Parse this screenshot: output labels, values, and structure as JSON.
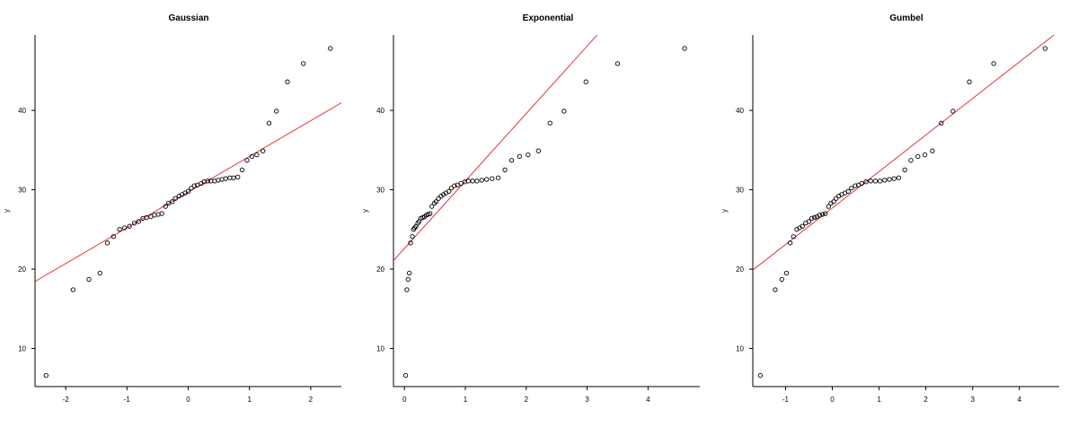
{
  "chart_data": [
    {
      "type": "scatter",
      "title": "Gaussian",
      "xlabel": "",
      "ylabel": "y",
      "xlim": [
        -2.5,
        2.5
      ],
      "ylim": [
        5.2,
        49.5
      ],
      "x_ticks": [
        -2,
        -1,
        0,
        1,
        2
      ],
      "y_ticks": [
        10,
        20,
        30,
        40
      ],
      "grid": false,
      "point_color": "#000000",
      "line_color": "#e02020",
      "reference_line": {
        "intercept": 29.7,
        "slope": 4.5
      },
      "points": [
        [
          -2.32,
          6.6
        ],
        [
          -1.88,
          17.4
        ],
        [
          -1.62,
          18.7
        ],
        [
          -1.44,
          19.5
        ],
        [
          -1.32,
          23.3
        ],
        [
          -1.22,
          24.1
        ],
        [
          -1.12,
          25.0
        ],
        [
          -1.04,
          25.2
        ],
        [
          -0.96,
          25.4
        ],
        [
          -0.88,
          25.8
        ],
        [
          -0.81,
          26.0
        ],
        [
          -0.74,
          26.4
        ],
        [
          -0.68,
          26.5
        ],
        [
          -0.61,
          26.6
        ],
        [
          -0.55,
          26.8
        ],
        [
          -0.49,
          26.9
        ],
        [
          -0.43,
          27.0
        ],
        [
          -0.37,
          27.9
        ],
        [
          -0.32,
          28.3
        ],
        [
          -0.26,
          28.5
        ],
        [
          -0.21,
          28.9
        ],
        [
          -0.15,
          29.2
        ],
        [
          -0.1,
          29.4
        ],
        [
          -0.05,
          29.6
        ],
        [
          0.0,
          29.8
        ],
        [
          0.05,
          30.2
        ],
        [
          0.1,
          30.5
        ],
        [
          0.15,
          30.6
        ],
        [
          0.21,
          30.8
        ],
        [
          0.26,
          31.0
        ],
        [
          0.32,
          31.1
        ],
        [
          0.37,
          31.1
        ],
        [
          0.43,
          31.1
        ],
        [
          0.49,
          31.2
        ],
        [
          0.55,
          31.3
        ],
        [
          0.61,
          31.4
        ],
        [
          0.68,
          31.5
        ],
        [
          0.74,
          31.5
        ],
        [
          0.81,
          31.6
        ],
        [
          0.88,
          32.5
        ],
        [
          0.96,
          33.7
        ],
        [
          1.04,
          34.2
        ],
        [
          1.12,
          34.4
        ],
        [
          1.22,
          34.9
        ],
        [
          1.32,
          38.4
        ],
        [
          1.44,
          39.9
        ],
        [
          1.62,
          43.6
        ],
        [
          1.88,
          45.9
        ],
        [
          2.32,
          47.8
        ]
      ]
    },
    {
      "type": "scatter",
      "title": "Exponential",
      "xlabel": "",
      "ylabel": "y",
      "xlim": [
        -0.18,
        4.85
      ],
      "ylim": [
        5.2,
        49.5
      ],
      "x_ticks": [
        0,
        1,
        2,
        3,
        4
      ],
      "y_ticks": [
        10,
        20,
        30,
        40
      ],
      "grid": false,
      "point_color": "#000000",
      "line_color": "#e02020",
      "reference_line": {
        "intercept": 22.6,
        "slope": 8.5
      },
      "points": [
        [
          0.02,
          6.6
        ],
        [
          0.04,
          17.4
        ],
        [
          0.06,
          18.7
        ],
        [
          0.08,
          19.5
        ],
        [
          0.1,
          23.3
        ],
        [
          0.13,
          24.1
        ],
        [
          0.15,
          25.0
        ],
        [
          0.17,
          25.2
        ],
        [
          0.19,
          25.4
        ],
        [
          0.22,
          25.8
        ],
        [
          0.24,
          26.0
        ],
        [
          0.27,
          26.4
        ],
        [
          0.3,
          26.5
        ],
        [
          0.33,
          26.6
        ],
        [
          0.36,
          26.8
        ],
        [
          0.39,
          26.9
        ],
        [
          0.42,
          27.0
        ],
        [
          0.45,
          27.9
        ],
        [
          0.49,
          28.3
        ],
        [
          0.52,
          28.5
        ],
        [
          0.56,
          28.9
        ],
        [
          0.6,
          29.2
        ],
        [
          0.64,
          29.4
        ],
        [
          0.68,
          29.6
        ],
        [
          0.73,
          29.8
        ],
        [
          0.77,
          30.2
        ],
        [
          0.82,
          30.5
        ],
        [
          0.87,
          30.6
        ],
        [
          0.93,
          30.8
        ],
        [
          0.99,
          31.0
        ],
        [
          1.05,
          31.1
        ],
        [
          1.12,
          31.1
        ],
        [
          1.19,
          31.1
        ],
        [
          1.27,
          31.2
        ],
        [
          1.35,
          31.3
        ],
        [
          1.44,
          31.4
        ],
        [
          1.54,
          31.5
        ],
        [
          1.65,
          32.5
        ],
        [
          1.76,
          33.7
        ],
        [
          1.89,
          34.2
        ],
        [
          2.03,
          34.4
        ],
        [
          2.2,
          34.9
        ],
        [
          2.39,
          38.4
        ],
        [
          2.62,
          39.9
        ],
        [
          2.98,
          43.6
        ],
        [
          3.5,
          45.9
        ],
        [
          4.6,
          47.8
        ]
      ]
    },
    {
      "type": "scatter",
      "title": "Gumbel",
      "xlabel": "",
      "ylabel": "y",
      "xlim": [
        -1.7,
        4.85
      ],
      "ylim": [
        5.2,
        49.5
      ],
      "x_ticks": [
        -1,
        0,
        1,
        2,
        3,
        4
      ],
      "y_ticks": [
        10,
        20,
        30,
        40
      ],
      "grid": false,
      "point_color": "#000000",
      "line_color": "#e02020",
      "reference_line": {
        "intercept": 27.7,
        "slope": 4.6
      },
      "points": [
        [
          -1.54,
          6.6
        ],
        [
          -1.22,
          17.4
        ],
        [
          -1.08,
          18.7
        ],
        [
          -0.98,
          19.5
        ],
        [
          -0.9,
          23.3
        ],
        [
          -0.83,
          24.1
        ],
        [
          -0.76,
          25.0
        ],
        [
          -0.7,
          25.2
        ],
        [
          -0.64,
          25.4
        ],
        [
          -0.57,
          25.8
        ],
        [
          -0.5,
          26.0
        ],
        [
          -0.44,
          26.4
        ],
        [
          -0.38,
          26.5
        ],
        [
          -0.33,
          26.6
        ],
        [
          -0.27,
          26.8
        ],
        [
          -0.21,
          26.9
        ],
        [
          -0.15,
          27.0
        ],
        [
          -0.08,
          27.9
        ],
        [
          -0.03,
          28.3
        ],
        [
          0.03,
          28.5
        ],
        [
          0.08,
          28.9
        ],
        [
          0.14,
          29.2
        ],
        [
          0.2,
          29.4
        ],
        [
          0.27,
          29.6
        ],
        [
          0.34,
          29.8
        ],
        [
          0.41,
          30.2
        ],
        [
          0.49,
          30.5
        ],
        [
          0.56,
          30.6
        ],
        [
          0.63,
          30.8
        ],
        [
          0.72,
          31.0
        ],
        [
          0.82,
          31.1
        ],
        [
          0.92,
          31.1
        ],
        [
          1.02,
          31.1
        ],
        [
          1.12,
          31.2
        ],
        [
          1.22,
          31.3
        ],
        [
          1.32,
          31.4
        ],
        [
          1.42,
          31.5
        ],
        [
          1.55,
          32.5
        ],
        [
          1.68,
          33.7
        ],
        [
          1.83,
          34.2
        ],
        [
          1.98,
          34.4
        ],
        [
          2.14,
          34.9
        ],
        [
          2.33,
          38.4
        ],
        [
          2.58,
          39.9
        ],
        [
          2.93,
          43.6
        ],
        [
          3.45,
          45.9
        ],
        [
          4.55,
          47.8
        ]
      ]
    }
  ]
}
